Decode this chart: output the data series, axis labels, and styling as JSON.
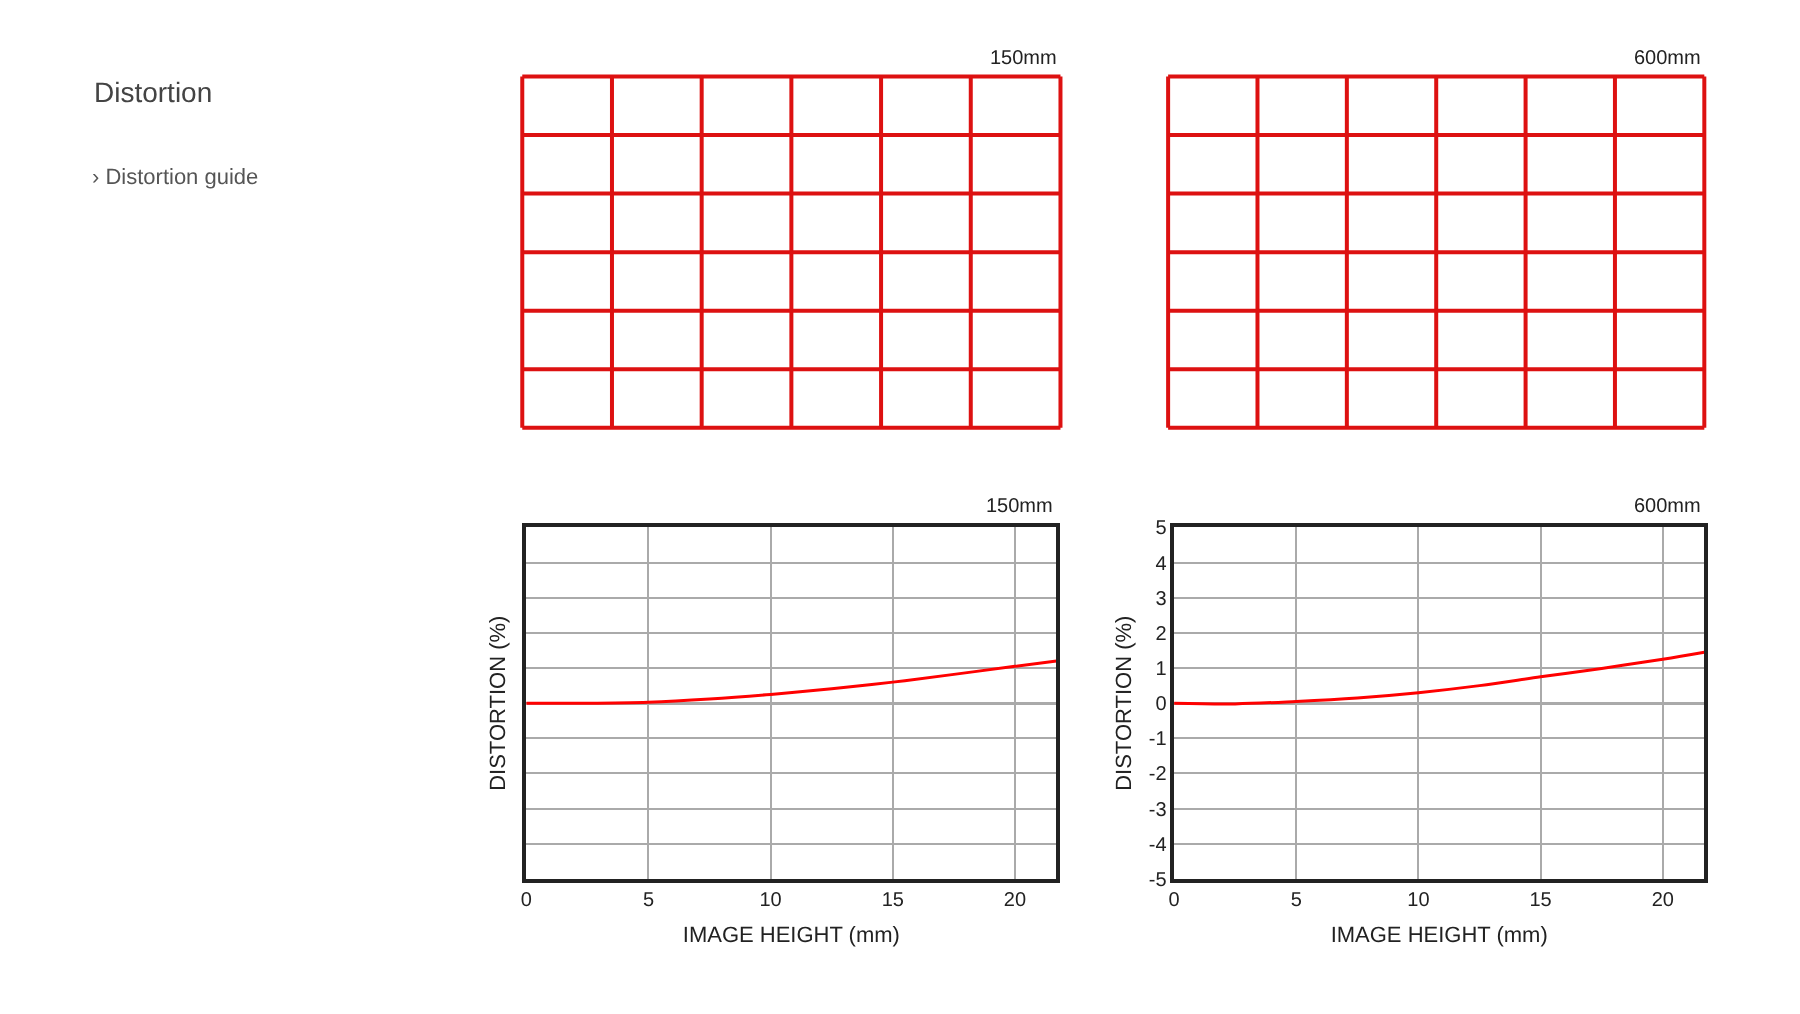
{
  "chart_data": [
    {
      "type": "other",
      "title": "Distortion",
      "annotations": [
        "› Distortion guide",
        "150mm",
        "600mm"
      ]
    },
    {
      "type": "line",
      "title": "150mm",
      "xlabel": "IMAGE HEIGHT (mm)",
      "ylabel": "DISTORTION (%)",
      "x": [
        0,
        2.5,
        5,
        7.5,
        10,
        12.5,
        15,
        17.5,
        20,
        21.7
      ],
      "series": [
        {
          "color": "#ff0000",
          "values": [
            0,
            0.0,
            0.03,
            0.12,
            0.25,
            0.41,
            0.6,
            0.82,
            1.05,
            1.2
          ]
        }
      ],
      "xlim": [
        0,
        21.7
      ],
      "xticks": [
        0,
        5,
        10,
        15,
        20
      ],
      "ylim": [
        -5,
        5
      ],
      "yticks": [
        {
          "value": -5,
          "label": null
        },
        {
          "value": -4,
          "label": null
        },
        {
          "value": -3,
          "label": null
        },
        {
          "value": -2,
          "label": null
        },
        {
          "value": -1,
          "label": null
        },
        {
          "value": 0,
          "label": null
        },
        {
          "value": 1,
          "label": null
        },
        {
          "value": 2,
          "label": null
        },
        {
          "value": 3,
          "label": null
        },
        {
          "value": 4,
          "label": null
        },
        {
          "value": 5,
          "label": null
        }
      ],
      "tick_labels": "x",
      "grid": true,
      "marker": "none",
      "line_style": "solid"
    },
    {
      "type": "line",
      "title": "600mm",
      "xlabel": "IMAGE HEIGHT (mm)",
      "ylabel": "DISTORTION (%)",
      "x": [
        0,
        2.5,
        5,
        7.5,
        10,
        12.5,
        15,
        17.5,
        20,
        21.7
      ],
      "series": [
        {
          "color": "#ff0000",
          "values": [
            0,
            -0.02,
            0.05,
            0.15,
            0.3,
            0.5,
            0.75,
            0.99,
            1.25,
            1.45
          ]
        }
      ],
      "xlim": [
        0,
        21.7
      ],
      "xticks": [
        0,
        5,
        10,
        15,
        20
      ],
      "ylim": [
        -5,
        5
      ],
      "yticks": [
        -5,
        -4,
        -3,
        -2,
        -1,
        0,
        1,
        2,
        3,
        4,
        5
      ],
      "grid": true,
      "marker": "none",
      "line_style": "solid"
    }
  ]
}
